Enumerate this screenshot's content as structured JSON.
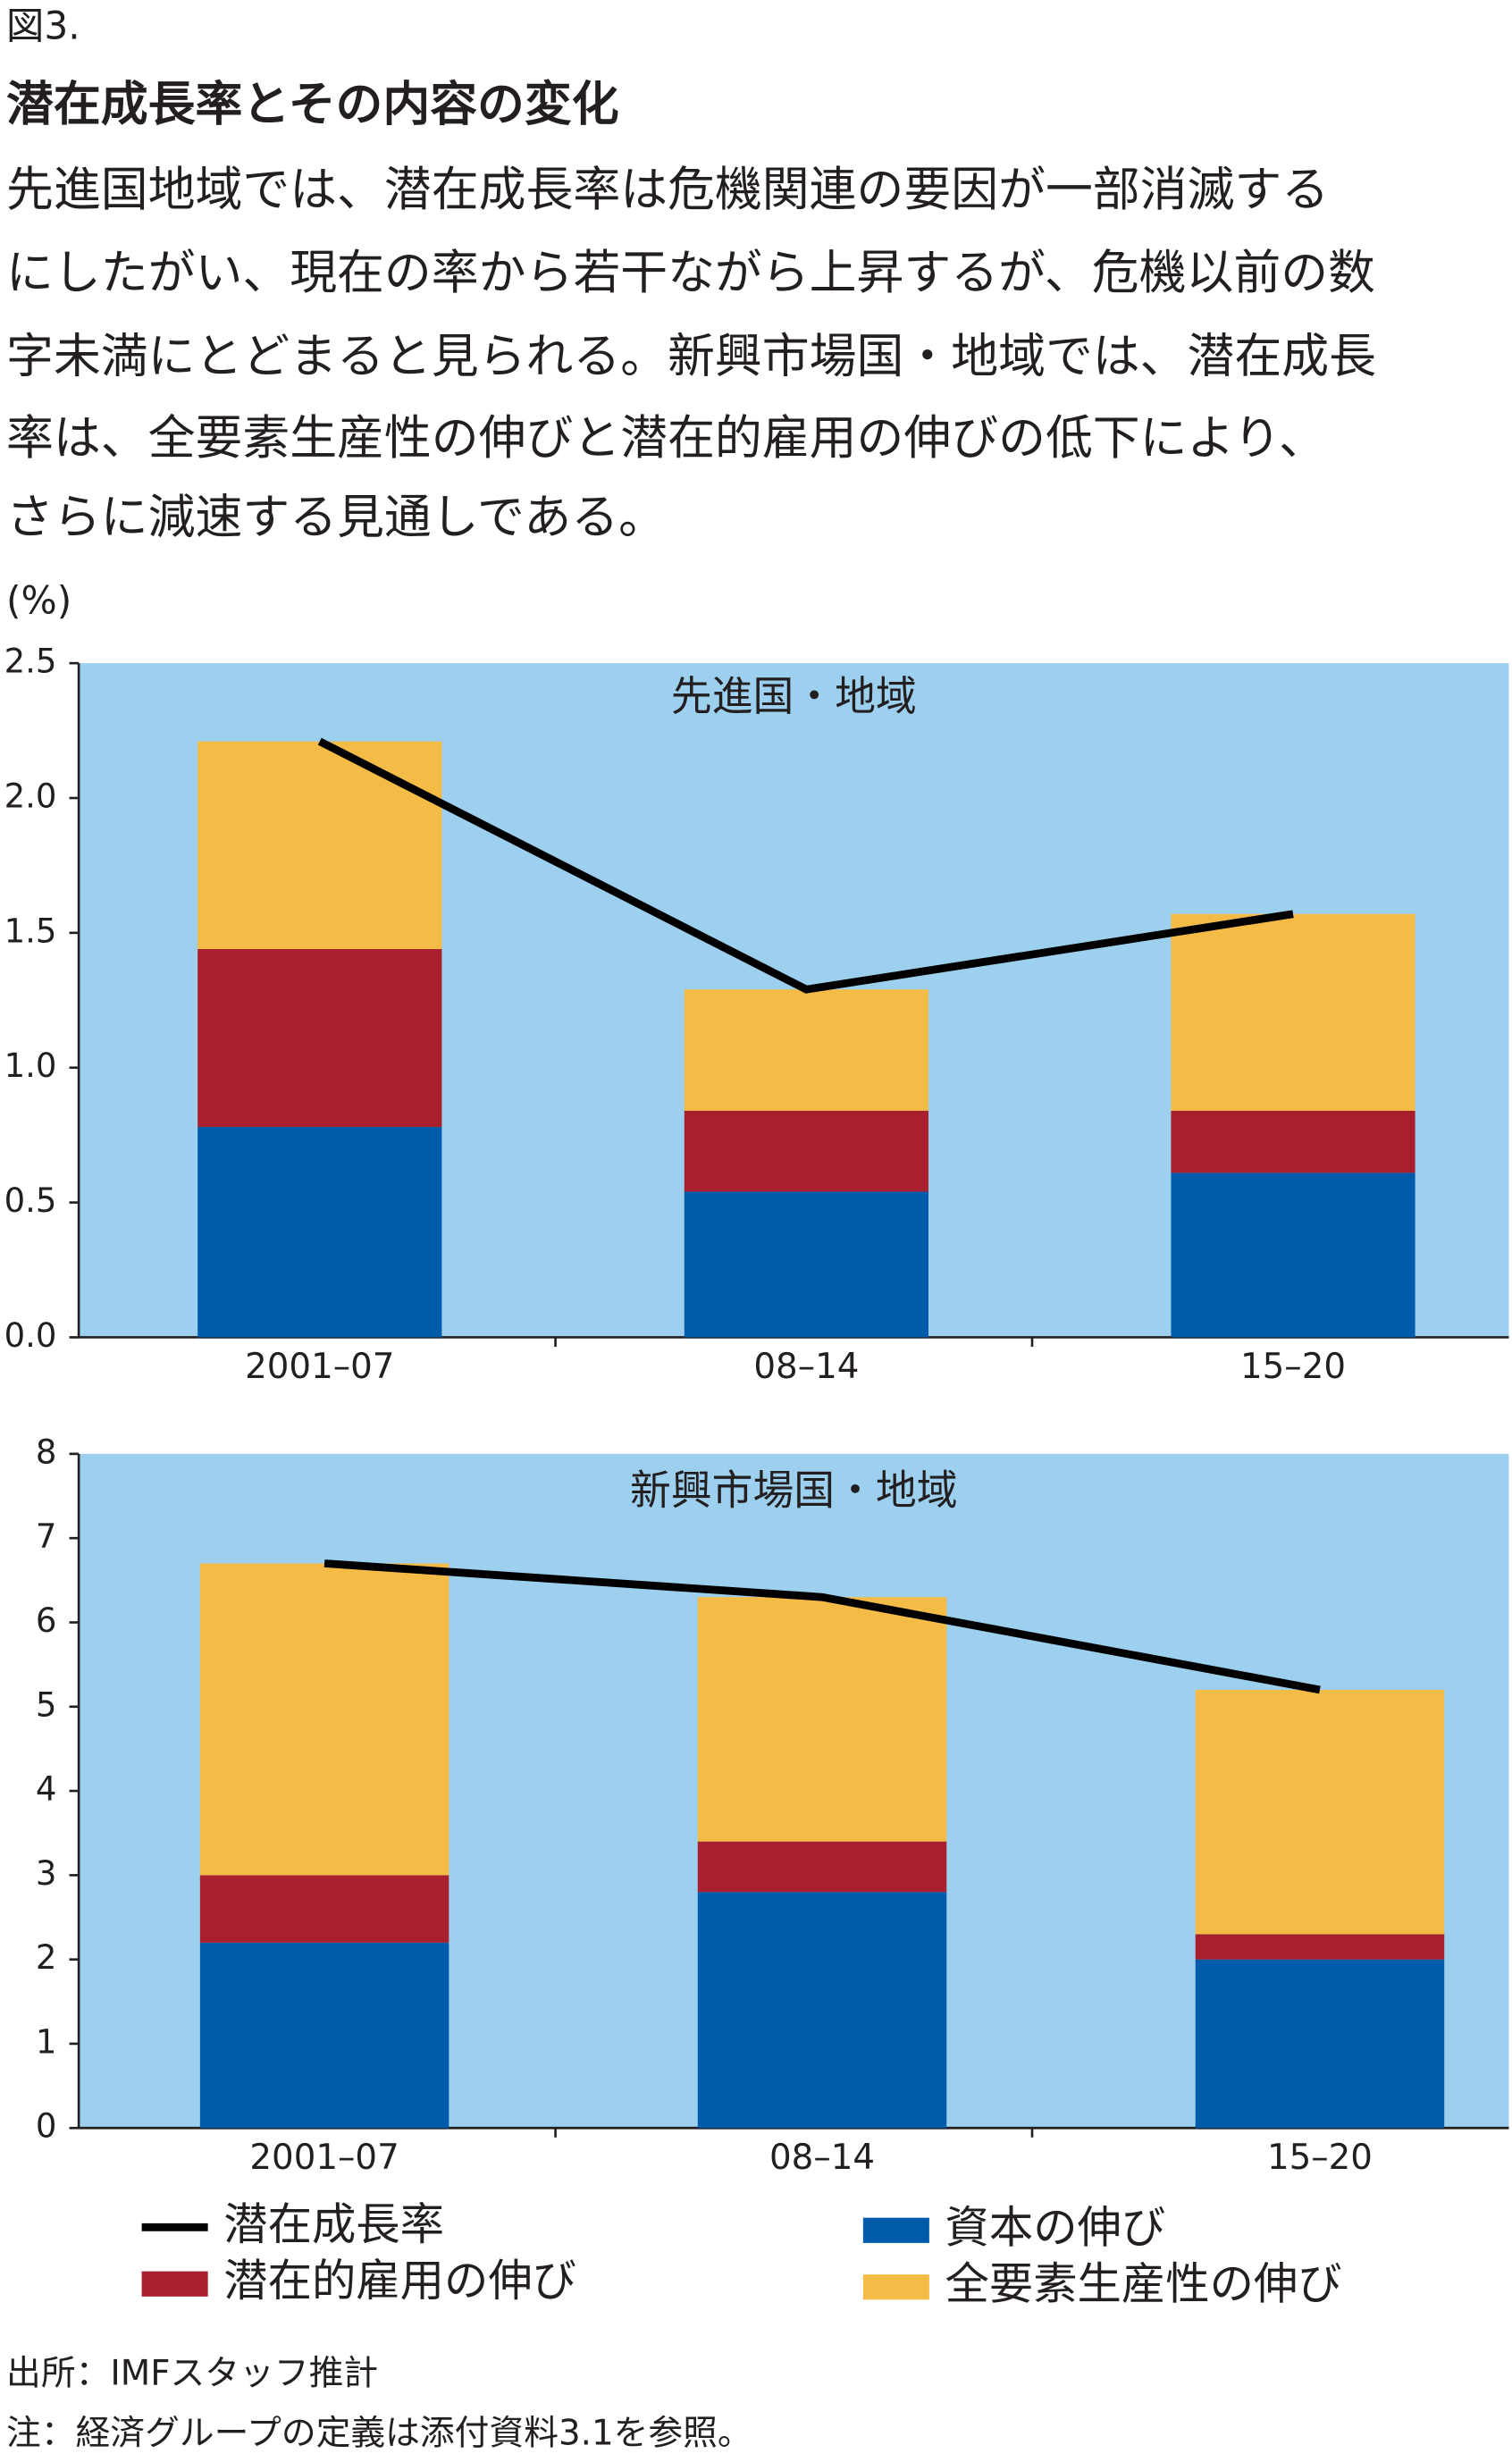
{
  "figure_label": "図3.",
  "title": "潜在成長率とその内容の変化",
  "description": [
    "先進国地域では、潜在成長率は危機関連の要因が一部消滅する",
    "にしたがい、現在の率から若干ながら上昇するが、危機以前の数",
    "字未満にとどまると見られる。新興市場国・地域では、潜在成長",
    "率は、全要素生産性の伸びと潜在的雇用の伸びの低下により、",
    "さらに減速する見通しである。"
  ],
  "chart_data": [
    {
      "type": "bar",
      "stacked": true,
      "title": "先進国・地域",
      "y_label": "(%)",
      "categories": [
        "2001–07",
        "08–14",
        "15–20"
      ],
      "series": [
        {
          "name": "資本の伸び",
          "color": "#005bab",
          "values": [
            0.78,
            0.54,
            0.61
          ]
        },
        {
          "name": "潜在的雇用の伸び",
          "color": "#a91f2e",
          "values": [
            0.66,
            0.3,
            0.23
          ]
        },
        {
          "name": "全要素生産性の伸び",
          "color": "#f4bb46",
          "values": [
            0.77,
            0.45,
            0.73
          ]
        },
        {
          "name": "潜在成長率",
          "type": "line",
          "color": "#000000",
          "values": [
            2.21,
            1.29,
            1.57
          ]
        }
      ],
      "ylim": [
        0,
        2.5
      ],
      "yticks": [
        {
          "value": 0,
          "label": "0.0"
        },
        0.5,
        {
          "value": 1,
          "label": "1.0"
        },
        1.5,
        {
          "value": 2,
          "label": "2.0"
        },
        2.5
      ],
      "background": "#9dcfee"
    },
    {
      "type": "bar",
      "stacked": true,
      "title": "新興市場国・地域",
      "categories": [
        "2001–07",
        "08–14",
        "15–20"
      ],
      "series": [
        {
          "color": "#005bab",
          "values": [
            2.2,
            2.8,
            2.0
          ]
        },
        {
          "color": "#a91f2e",
          "values": [
            0.8,
            0.6,
            0.3
          ]
        },
        {
          "color": "#f4bb46",
          "values": [
            3.7,
            2.9,
            2.9
          ]
        },
        {
          "type": "line",
          "color": "#000000",
          "values": [
            6.7,
            6.3,
            5.2
          ]
        }
      ],
      "ylim": [
        0,
        8
      ],
      "yticks": [
        0,
        1,
        2,
        3,
        4,
        5,
        6,
        7,
        8
      ],
      "background": "#9dcfee"
    }
  ],
  "source": "出所：IMFスタッフ推計",
  "note": "注：経済グループの定義は添付資料3.1を参照。"
}
